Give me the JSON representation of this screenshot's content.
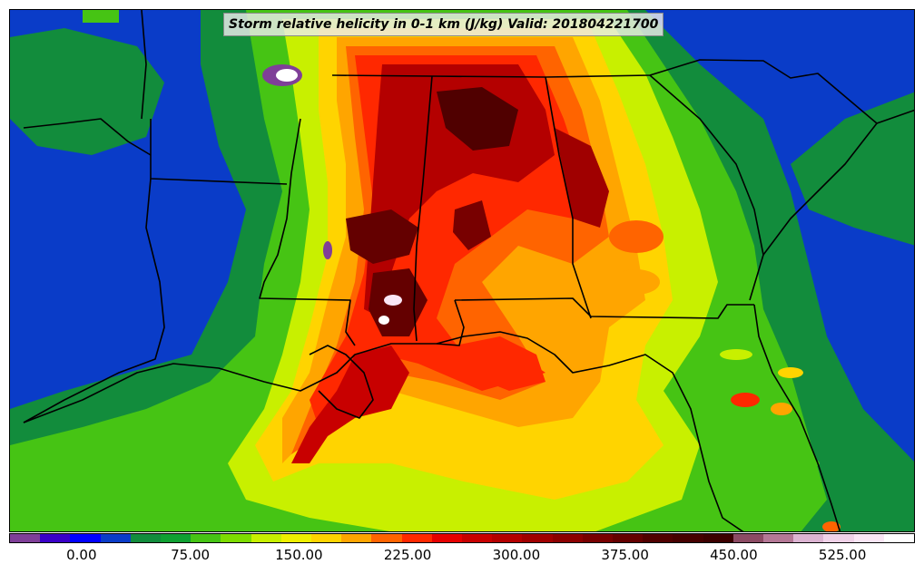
{
  "title": "Storm relative helicity in 0-1 km (J/kg) Valid: 201804221700",
  "colorbar": {
    "colors": [
      "#7f3f98",
      "#3a00c8",
      "#0000ff",
      "#0a3cc8",
      "#128c3c",
      "#0fa032",
      "#46c414",
      "#7ddc00",
      "#c8f000",
      "#f0f000",
      "#ffd400",
      "#ffa500",
      "#ff6400",
      "#ff2800",
      "#e60000",
      "#c80000",
      "#b40000",
      "#a00000",
      "#8c0000",
      "#780000",
      "#640000",
      "#500000",
      "#460000",
      "#3c0000",
      "#8c4b64",
      "#b47896",
      "#dcb4d2",
      "#f0d2e8",
      "#fae6f5",
      "#ffffff"
    ],
    "tick_labels": [
      "0.00",
      "75.00",
      "150.00",
      "225.00",
      "300.00",
      "375.00",
      "450.00",
      "525.00"
    ],
    "tick_values": [
      0,
      75,
      150,
      225,
      300,
      375,
      450,
      525
    ],
    "range": [
      -50,
      575
    ]
  },
  "palette": {
    "background": "#0a3cc8",
    "border_color": "#000000"
  }
}
